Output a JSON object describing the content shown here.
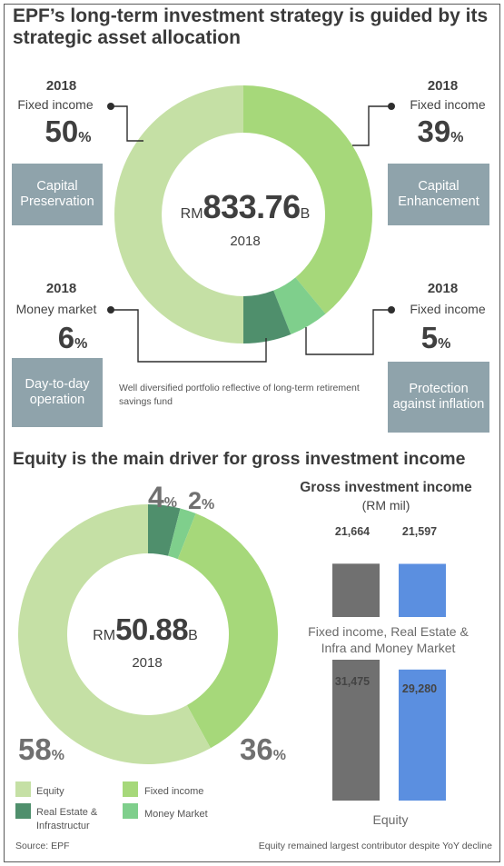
{
  "titles": {
    "main": "EPF’s long-term investment strategy is guided by its strategic asset allocation",
    "second": "Equity is the main driver for gross investment income"
  },
  "allocation": {
    "items": [
      {
        "year": "2018",
        "category": "Fixed income",
        "value": "50",
        "unit": "%",
        "box": "Capital Preservation"
      },
      {
        "year": "2018",
        "category": "Fixed income",
        "value": "39",
        "unit": "%",
        "box": "Capital Enhancement"
      },
      {
        "year": "2018",
        "category": "Money market",
        "value": "6",
        "unit": "%",
        "box": "Day-to-day operation"
      },
      {
        "year": "2018",
        "category": "Fixed income",
        "value": "5",
        "unit": "%",
        "box": "Protection against inflation"
      }
    ],
    "center": {
      "prefix": "RM",
      "amount": "833.76",
      "suffix": "B",
      "year": "2018"
    },
    "note": "Well diversified portfolio reflective of long-term retirement savings fund"
  },
  "income": {
    "center": {
      "prefix": "RM",
      "amount": "50.88",
      "suffix": "B",
      "year": "2018"
    },
    "pct_labels": [
      {
        "value": "4",
        "unit": "%"
      },
      {
        "value": "2",
        "unit": "%"
      },
      {
        "value": "58",
        "unit": "%"
      },
      {
        "value": "36",
        "unit": "%"
      }
    ],
    "legend": [
      {
        "label": "Equity",
        "color": "#c5e0a5"
      },
      {
        "label": "Fixed income",
        "color": "#a6d87a"
      },
      {
        "label": "Real Estate & Infrastructur",
        "color": "#4f8f6c"
      },
      {
        "label": "Money Market",
        "color": "#7fcf8c"
      }
    ],
    "bar_title": "Gross investment income",
    "bar_unit": "(RM mil)",
    "group1_caption": "Fixed income, Real Estate & Infra and Money Market",
    "group2_caption": "Equity",
    "bar_labels": [
      "21,664",
      "21,597",
      "31,475",
      "29,280"
    ]
  },
  "footer": {
    "source": "Source: EPF",
    "note": "Equity remained largest contributor despite YoY decline"
  },
  "colors": {
    "light_green": "#c5e0a5",
    "mid_green": "#a6d87a",
    "dark_green": "#4f8f6c",
    "mint": "#7fcf8c",
    "grey_bar": "#707070",
    "blue_bar": "#5b8fe0",
    "box": "#8fa3ab"
  },
  "chart_data": [
    {
      "type": "pie",
      "title": "Strategic asset allocation 2018 (RM833.76B)",
      "categories": [
        "Fixed income (Capital Preservation)",
        "Fixed income (Capital Enhancement)",
        "Fixed income (Protection against inflation)",
        "Money market (Day-to-day operation)"
      ],
      "values": [
        50,
        39,
        5,
        6
      ]
    },
    {
      "type": "pie",
      "title": "Gross investment income 2018 (RM50.88B)",
      "categories": [
        "Real Estate & Infrastructur",
        "Money Market",
        "Fixed income",
        "Equity"
      ],
      "values": [
        4,
        2,
        36,
        58
      ]
    },
    {
      "type": "bar",
      "title": "Gross investment income",
      "ylabel": "(RM mil)",
      "categories": [
        "Fixed income, Real Estate & Infra and Money Market",
        "Equity"
      ],
      "series": [
        {
          "values": [
            21664,
            31475
          ]
        },
        {
          "values": [
            21597,
            29280
          ]
        }
      ]
    }
  ]
}
